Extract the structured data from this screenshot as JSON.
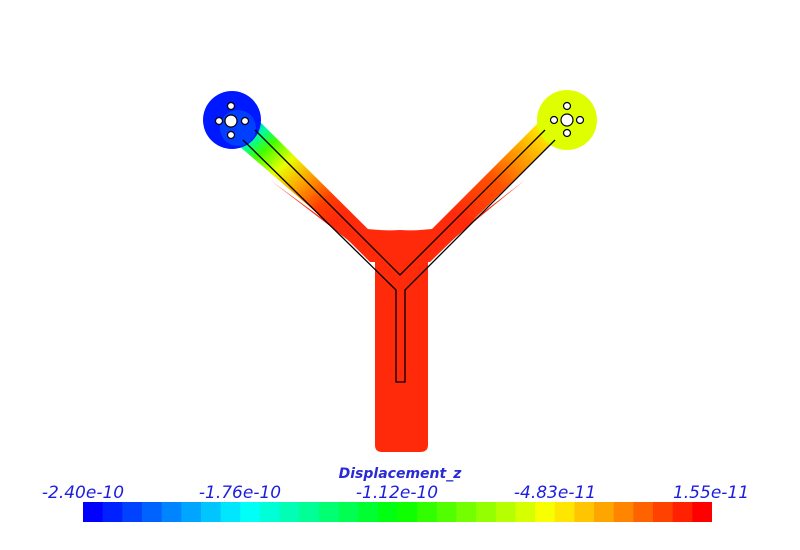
{
  "legend": {
    "title": "Displacement_z",
    "ticks": [
      "-2.40e-10",
      "-1.76e-10",
      "-1.12e-10",
      "-4.83e-11",
      "1.55e-11"
    ]
  },
  "colormap": {
    "stops": [
      "#0000ff",
      "#00ffff",
      "#00ff00",
      "#ffff00",
      "#ff0000"
    ]
  },
  "part": {
    "color_left_hub": "#0000ff",
    "color_right_hub": "#dfff00",
    "color_body": "#ff2a0a",
    "outline": "#000000"
  }
}
